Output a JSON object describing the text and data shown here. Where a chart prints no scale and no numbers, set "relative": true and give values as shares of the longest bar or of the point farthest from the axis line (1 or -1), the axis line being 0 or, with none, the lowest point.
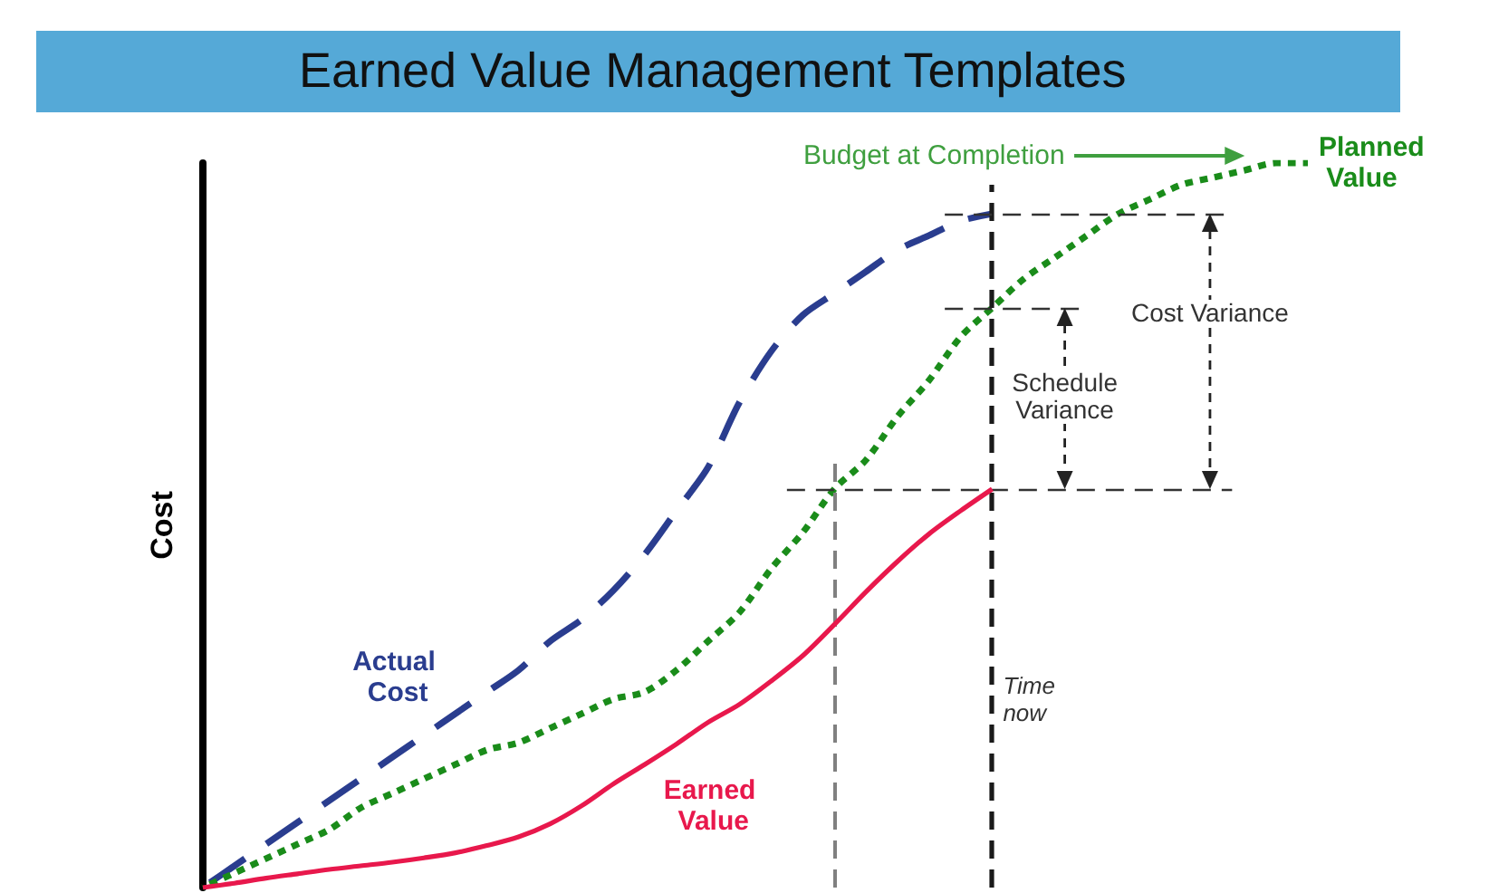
{
  "chart_data": {
    "type": "line",
    "title": "Earned Value Management Templates",
    "ylabel": "Cost",
    "relative": true,
    "legend": false,
    "grid": false,
    "tick_labels": false,
    "categories": [
      null,
      null,
      null,
      null,
      null,
      null,
      null,
      null,
      null,
      null,
      null,
      null,
      null,
      null,
      null,
      null,
      null,
      null,
      null,
      null,
      null,
      null,
      null,
      null,
      null,
      null,
      null,
      null,
      null,
      null,
      null,
      null,
      null,
      null,
      null,
      null
    ],
    "series": [
      {
        "name": "Actual Cost",
        "color": "#2a3d8f",
        "line_style": "dashed",
        "values": [
          0,
          0.03,
          0.06,
          0.09,
          0.12,
          0.15,
          0.18,
          0.21,
          0.24,
          0.27,
          0.3,
          0.34,
          0.37,
          0.41,
          0.46,
          0.52,
          0.58,
          0.67,
          0.74,
          0.79,
          0.82,
          0.85,
          0.88,
          0.9,
          0.92,
          0.93,
          null,
          null,
          null,
          null,
          null,
          null,
          null,
          null,
          null,
          null
        ]
      },
      {
        "name": "Planned Value",
        "color": "#1a8c1a",
        "line_style": "dotted",
        "values": [
          0,
          0.02,
          0.04,
          0.06,
          0.08,
          0.11,
          0.13,
          0.15,
          0.17,
          0.19,
          0.2,
          0.22,
          0.24,
          0.26,
          0.27,
          0.3,
          0.34,
          0.38,
          0.44,
          0.49,
          0.55,
          0.59,
          0.65,
          0.7,
          0.76,
          0.8,
          0.84,
          0.87,
          0.9,
          0.93,
          0.95,
          0.97,
          0.98,
          0.99,
          1,
          1
        ]
      },
      {
        "name": "Earned Value",
        "color": "#e8184c",
        "line_style": "solid",
        "values": [
          0,
          0.006,
          0.013,
          0.019,
          0.025,
          0.03,
          0.035,
          0.041,
          0.048,
          0.058,
          0.07,
          0.088,
          0.113,
          0.143,
          0.17,
          0.198,
          0.228,
          0.253,
          0.285,
          0.32,
          0.363,
          0.408,
          0.45,
          0.488,
          0.52,
          0.55,
          null,
          null,
          null,
          null,
          null,
          null,
          null,
          null,
          null,
          null
        ]
      }
    ],
    "ref_lines": [
      {
        "axis": "y",
        "value": 0.93,
        "color": "#333333",
        "line_style": "dashed"
      },
      {
        "axis": "y",
        "value": 0.8,
        "color": "#333333",
        "line_style": "dashed"
      },
      {
        "axis": "y",
        "value": 0.55,
        "color": "#333333",
        "line_style": "dashed"
      }
    ],
    "annotations": [
      "Budget at Completion",
      "Cost Variance",
      "Schedule Variance",
      "Time now"
    ]
  }
}
